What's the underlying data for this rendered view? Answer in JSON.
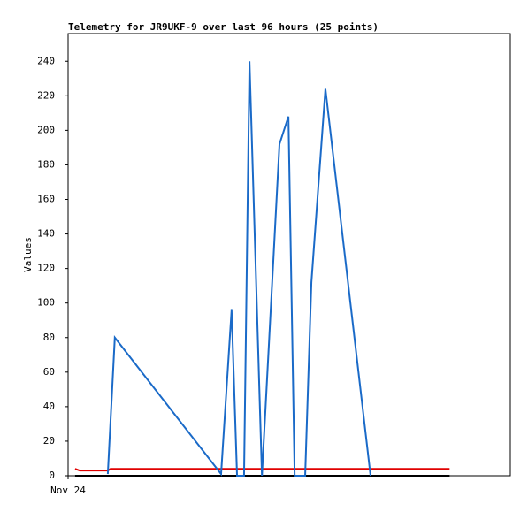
{
  "chart_data": {
    "type": "line",
    "title": "Telemetry for JR9UKF-9 over last 96 hours (25 points)",
    "y_label": "Values",
    "xlim": [
      0,
      113.6
    ],
    "xticks": [
      {
        "value": 0,
        "label": "Nov 24"
      }
    ],
    "ylim": [
      0,
      256
    ],
    "yticks": [
      0,
      20,
      40,
      60,
      80,
      100,
      120,
      140,
      160,
      180,
      200,
      220,
      240
    ],
    "series": [
      {
        "color": "#000000",
        "x": [
          1.8,
          98.0
        ],
        "values": [
          0,
          0
        ]
      },
      {
        "color": "#e00000",
        "x": [
          1.8,
          3.0,
          10.2,
          10.9,
          98.0
        ],
        "values": [
          4,
          3,
          3,
          4,
          4
        ]
      },
      {
        "color": "#1a6ac8",
        "x": [
          10.2,
          12.0,
          39.3,
          42.0,
          43.4,
          45.2,
          46.6,
          49.8,
          54.3,
          56.6,
          58.2,
          60.9,
          62.5,
          66.1,
          77.7
        ],
        "values": [
          1,
          80,
          1,
          96,
          0,
          0,
          240,
          0,
          192,
          208,
          0,
          0,
          112,
          224,
          0
        ]
      }
    ]
  }
}
